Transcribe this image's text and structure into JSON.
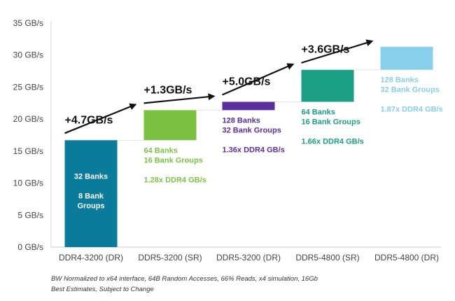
{
  "chart_data": {
    "type": "bar",
    "subtype": "waterfall",
    "ylim": [
      0,
      35
    ],
    "yticks": [
      "0 GB/s",
      "5 GB/s",
      "10 GB/s",
      "15 GB/s",
      "20 GB/s",
      "25 GB/s",
      "30 GB/s",
      "35 GB/s"
    ],
    "categories": [
      "DDR4-3200 (DR)",
      "DDR5-3200 (SR)",
      "DDR5-3200 (DR)",
      "DDR5-4800 (SR)",
      "DDR5-4800 (DR)"
    ],
    "bars": [
      {
        "start": 0,
        "end": 16.7,
        "color": "#0A7B9A",
        "annotation": [
          "32 Banks",
          "",
          "8 Bank",
          "Groups"
        ]
      },
      {
        "start": 16.7,
        "end": 21.4,
        "color": "#7CC242",
        "annotation": [
          "64 Banks",
          "16 Bank Groups",
          "",
          "1.28x DDR4 GB/s"
        ]
      },
      {
        "start": 21.4,
        "end": 22.7,
        "color": "#5B2D9E",
        "annotation": [
          "128 Banks",
          "32 Bank Groups",
          "",
          "1.36x DDR4 GB/s"
        ]
      },
      {
        "start": 22.7,
        "end": 27.7,
        "color": "#1A9E84",
        "annotation": [
          "64 Banks",
          "16 Bank Groups",
          "",
          "1.66x DDR4 GB/s"
        ]
      },
      {
        "start": 27.7,
        "end": 31.3,
        "color": "#87CFEA",
        "annotation": [
          "128 Banks",
          "32 Bank Groups",
          "",
          "1.87x DDR4 GB/s"
        ]
      }
    ],
    "increments": [
      "+4.7GB/s",
      "+1.3GB/s",
      "+5.0GB/s",
      "+3.6GB/s"
    ],
    "grid": false,
    "footnote": [
      "BW Normalized to x64 interface, 64B Random Accesses, 66% Reads, x4 simulation, 16Gb",
      "Best Estimates, Subject to Change"
    ]
  }
}
